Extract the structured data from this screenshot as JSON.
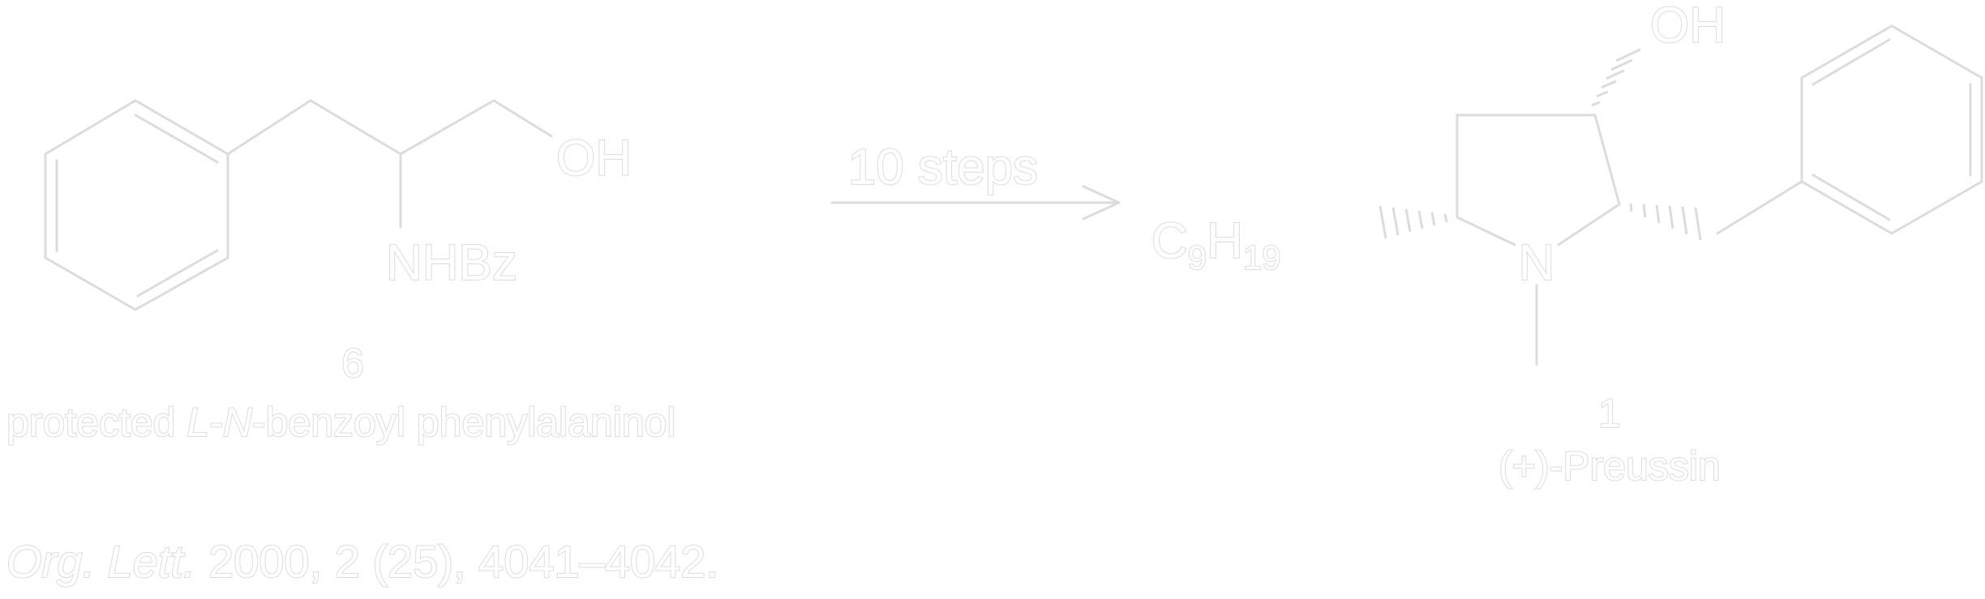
{
  "left": {
    "oh": "OH",
    "nhbz": "NHBz",
    "number": "6",
    "name_prefix": "protected ",
    "name_stereo": "L",
    "name_mid": "-",
    "name_n": "N",
    "name_suffix": "-benzoyl phenylalaninol"
  },
  "arrow": {
    "label": "10 steps"
  },
  "right": {
    "oh": "OH",
    "n": "N",
    "c": "C",
    "c_sub": "9",
    "h": "H",
    "h_sub": "19",
    "number": "1",
    "name": "(+)-Preussin"
  },
  "citation": {
    "journal": "Org. Lett.",
    "rest": " 2000, 2 (25), 4041–4042."
  }
}
